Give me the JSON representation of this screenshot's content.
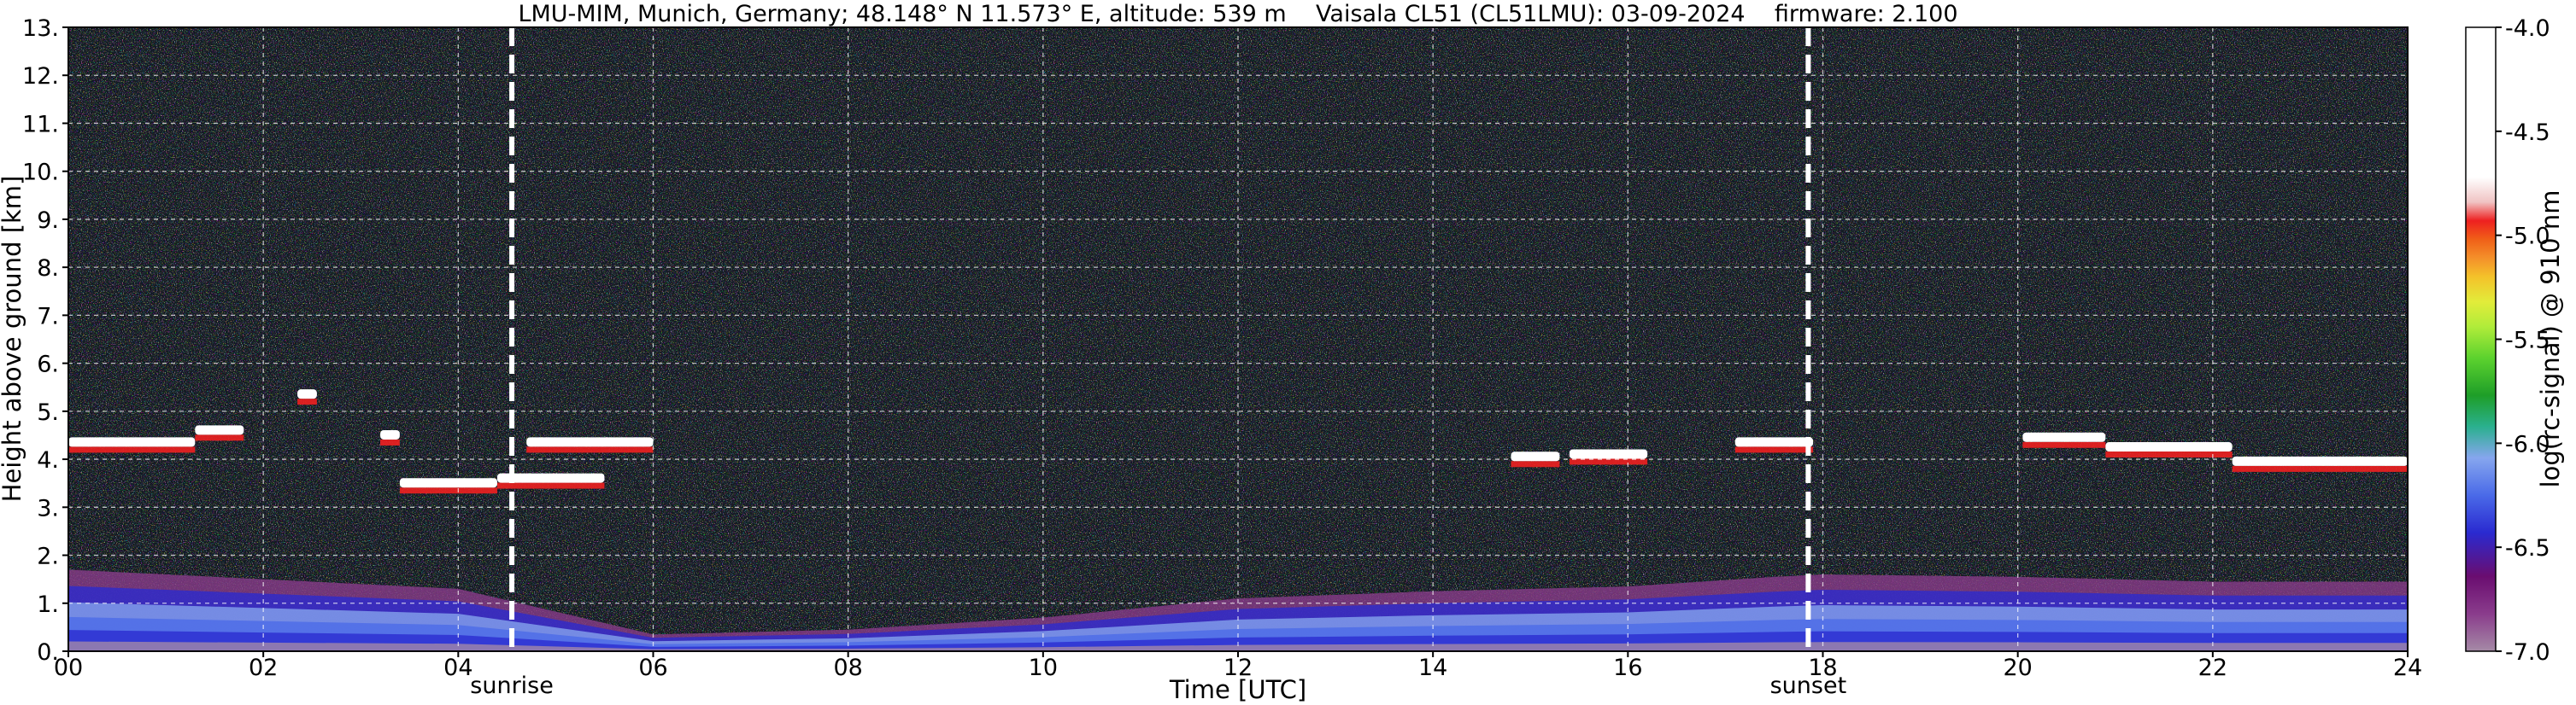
{
  "chart_data": {
    "type": "heatmap",
    "title": "LMU-MIM, Munich, Germany; 48.148° N 11.573° E, altitude: 539 m    Vaisala CL51 (CL51LMU): 03-09-2024    firmware: 2.100",
    "xlabel": "Time [UTC]",
    "ylabel": "Height above ground [km]",
    "colorbar_label": "log(rc-signal) @ 910 nm",
    "x_ticks": [
      "00",
      "02",
      "04",
      "06",
      "08",
      "10",
      "12",
      "14",
      "16",
      "18",
      "20",
      "22",
      "24"
    ],
    "y_ticks": [
      "0.",
      "1.",
      "2.",
      "3.",
      "4.",
      "5.",
      "6.",
      "7.",
      "8.",
      "9.",
      "10.",
      "11.",
      "12.",
      "13."
    ],
    "colorbar_ticks": [
      "-4.0",
      "-4.5",
      "-5.0",
      "-5.5",
      "-6.0",
      "-6.5",
      "-7.0"
    ],
    "xlim": [
      0,
      24
    ],
    "ylim": [
      0,
      13
    ],
    "clim": [
      -7.0,
      -4.0
    ],
    "grid": true,
    "events": [
      {
        "name": "sunrise",
        "time": 4.55
      },
      {
        "name": "sunset",
        "time": 17.85
      }
    ],
    "cloud_layers": [
      {
        "start": 0.0,
        "end": 1.3,
        "height": 4.35
      },
      {
        "start": 1.3,
        "end": 1.8,
        "height": 4.6
      },
      {
        "start": 2.35,
        "end": 2.55,
        "height": 5.35
      },
      {
        "start": 3.2,
        "end": 3.4,
        "height": 4.5
      },
      {
        "start": 3.4,
        "end": 4.4,
        "height": 3.5
      },
      {
        "start": 4.4,
        "end": 5.5,
        "height": 3.6
      },
      {
        "start": 4.7,
        "end": 6.0,
        "height": 4.35
      },
      {
        "start": 14.8,
        "end": 15.3,
        "height": 4.05
      },
      {
        "start": 15.4,
        "end": 16.2,
        "height": 4.1
      },
      {
        "start": 17.1,
        "end": 17.9,
        "height": 4.35
      },
      {
        "start": 20.05,
        "end": 20.9,
        "height": 4.45
      },
      {
        "start": 20.9,
        "end": 22.2,
        "height": 4.25
      },
      {
        "start": 22.2,
        "end": 24.0,
        "height": 3.95
      }
    ],
    "boundary_layer_top": [
      [
        0,
        1.7
      ],
      [
        2,
        1.5
      ],
      [
        4,
        1.3
      ],
      [
        6,
        0.35
      ],
      [
        8,
        0.45
      ],
      [
        10,
        0.7
      ],
      [
        11,
        0.9
      ],
      [
        12,
        1.1
      ],
      [
        14,
        1.25
      ],
      [
        16,
        1.35
      ],
      [
        17.5,
        1.55
      ],
      [
        18,
        1.6
      ],
      [
        20,
        1.55
      ],
      [
        22,
        1.45
      ],
      [
        24,
        1.45
      ]
    ],
    "colors": {
      "background": "#101820",
      "cloud": "#ffffff",
      "event_line": "#ffffff",
      "grid": "#ffffff"
    },
    "colormap": [
      "#a58aa6",
      "#8a3c8c",
      "#6a0d70",
      "#2a2ad0",
      "#4a6ae8",
      "#86a6ee",
      "#2ab08e",
      "#1e9e28",
      "#5cd22e",
      "#b0ec3a",
      "#e2ec3a",
      "#f4c22a",
      "#f4902a",
      "#f06018",
      "#ee2020",
      "#f0c4c4",
      "#ffffff"
    ]
  }
}
